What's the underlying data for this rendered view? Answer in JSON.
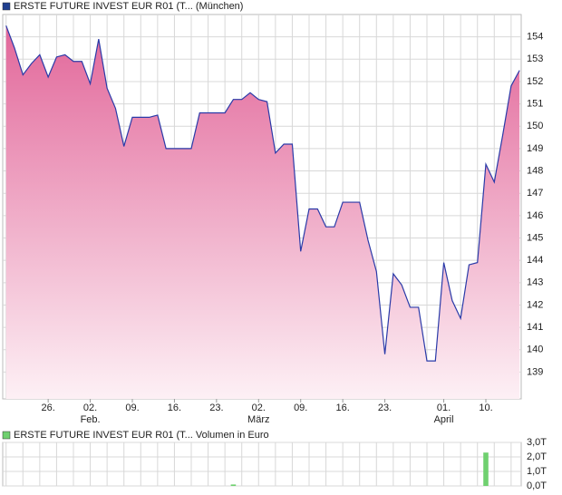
{
  "chart_data": [
    {
      "type": "area",
      "legend": "ERSTE FUTURE INVEST EUR R01 (T... (München)",
      "legend_color": "#1f3f8f",
      "line_color": "#2a3aa8",
      "fill_top": "#e2679a",
      "fill_bottom": "#fdf0f5",
      "values": [
        154.5,
        153.5,
        152.3,
        152.8,
        153.2,
        152.2,
        153.1,
        153.2,
        152.9,
        152.9,
        151.9,
        153.9,
        151.7,
        150.8,
        149.1,
        150.4,
        150.4,
        150.4,
        150.5,
        149.0,
        149.0,
        149.0,
        149.0,
        150.6,
        150.6,
        150.6,
        150.6,
        151.2,
        151.2,
        151.5,
        151.2,
        151.1,
        148.8,
        149.2,
        149.2,
        144.4,
        146.3,
        146.3,
        145.5,
        145.5,
        146.6,
        146.6,
        146.6,
        144.9,
        143.5,
        139.8,
        143.4,
        142.9,
        141.9,
        141.9,
        139.5,
        139.5,
        143.9,
        142.2,
        141.4,
        143.8,
        143.9,
        148.3,
        147.5,
        149.6,
        151.8,
        152.5
      ],
      "xlim": [
        -0.4,
        61.2
      ],
      "xticks": [
        {
          "value": 5,
          "label": "26."
        },
        {
          "value": 10,
          "label": "02."
        },
        {
          "value": 15,
          "label": "09."
        },
        {
          "value": 20,
          "label": "16."
        },
        {
          "value": 25,
          "label": "23."
        },
        {
          "value": 30,
          "label": "02."
        },
        {
          "value": 35,
          "label": "09."
        },
        {
          "value": 40,
          "label": "16."
        },
        {
          "value": 45,
          "label": "23."
        },
        {
          "value": 52,
          "label": "01."
        },
        {
          "value": 57,
          "label": "10."
        }
      ],
      "month_labels": [
        {
          "value": 10,
          "label": "Feb."
        },
        {
          "value": 30,
          "label": "März"
        },
        {
          "value": 52,
          "label": "April"
        }
      ],
      "ylim": [
        137.8,
        155
      ],
      "yticks": [
        139,
        140,
        141,
        142,
        143,
        144,
        145,
        146,
        147,
        148,
        149,
        150,
        151,
        152,
        153,
        154
      ],
      "grid": true
    },
    {
      "type": "bar",
      "legend": "ERSTE FUTURE INVEST EUR R01 (T... Volumen in Euro",
      "legend_color": "#6fd06f",
      "color": "#6fd06f",
      "values": [
        0,
        0,
        0,
        0,
        0,
        0,
        0,
        0,
        0,
        0,
        0,
        0,
        0,
        0,
        0,
        0,
        0,
        0,
        0,
        0,
        0,
        0,
        0,
        0,
        0,
        0,
        0,
        0.1,
        0,
        0,
        0,
        0,
        0,
        0,
        0,
        0,
        0,
        0,
        0,
        0,
        0,
        0,
        0,
        0,
        0,
        0,
        0,
        0,
        0,
        0,
        0,
        0,
        0,
        0,
        0,
        0,
        0,
        2.3,
        0,
        0,
        0,
        0
      ],
      "xlim": [
        -0.4,
        61.2
      ],
      "ylim": [
        0,
        3
      ],
      "yticks": [
        {
          "value": 3,
          "label": "3,0T"
        },
        {
          "value": 2,
          "label": "2,0T"
        },
        {
          "value": 1,
          "label": "1,0T"
        },
        {
          "value": 0,
          "label": "0,0T"
        }
      ],
      "grid": true
    }
  ]
}
